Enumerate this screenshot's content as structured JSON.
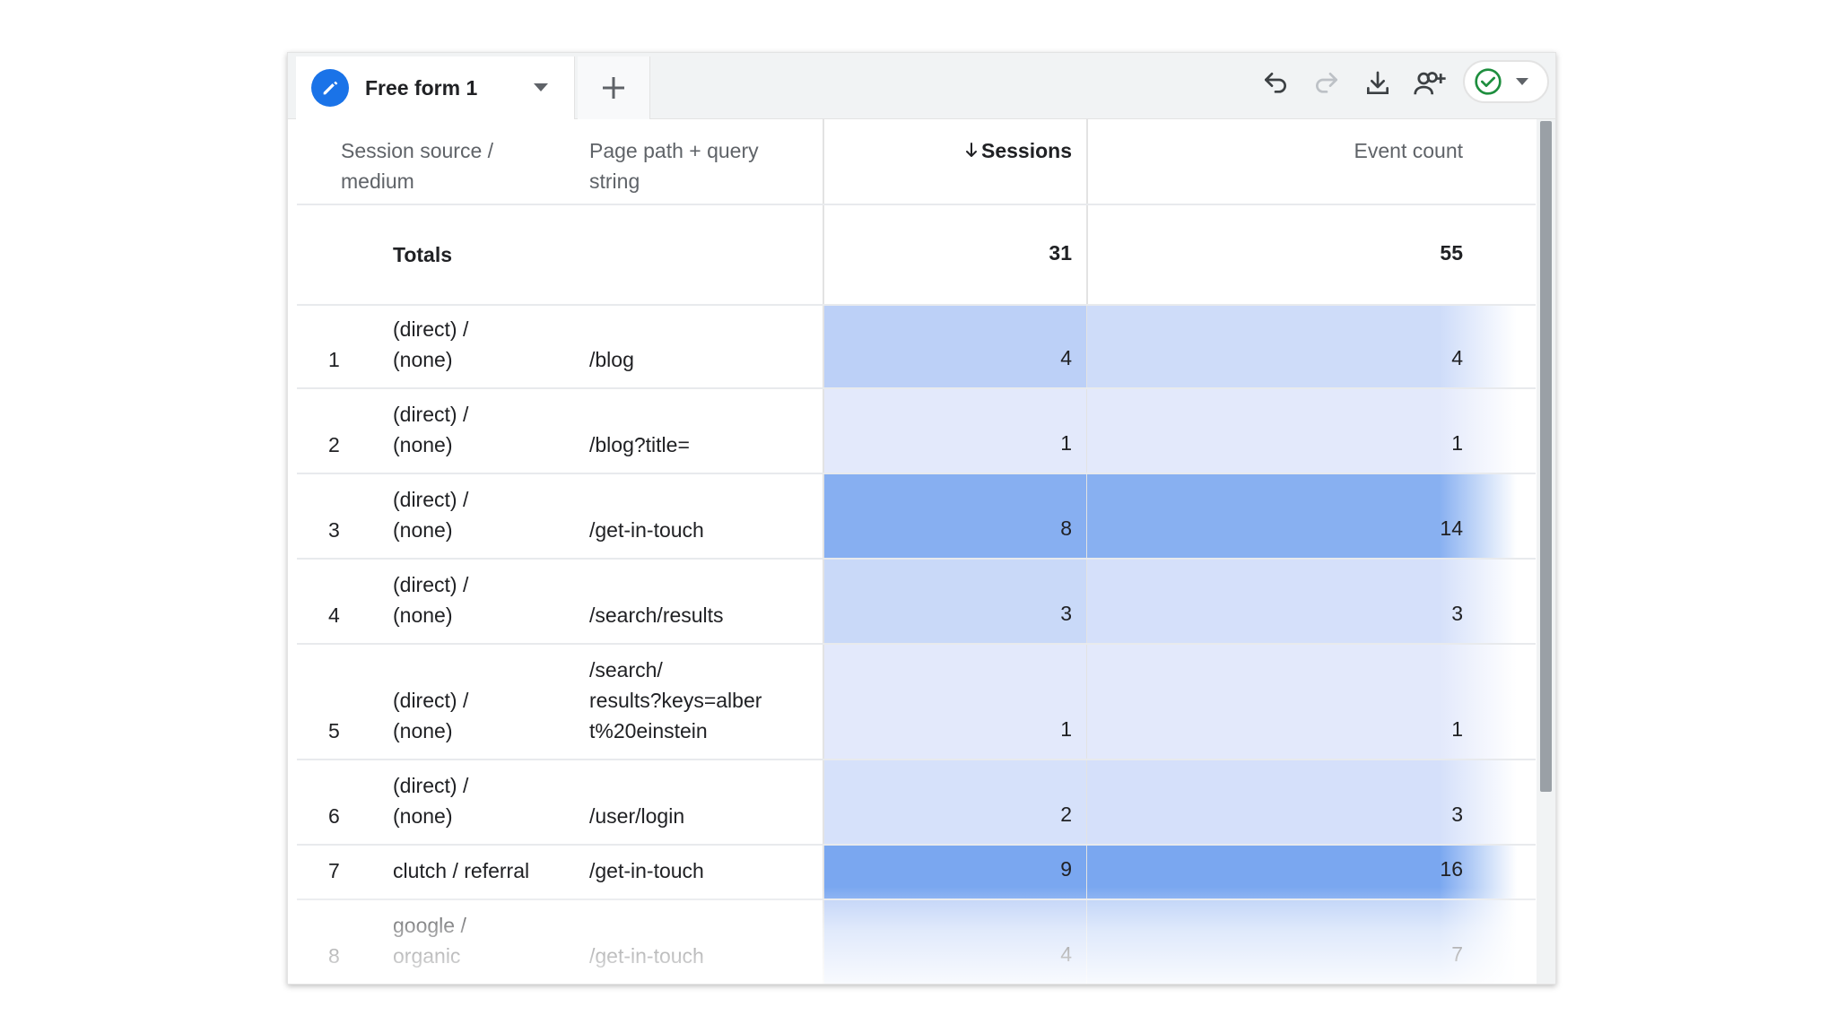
{
  "tab": {
    "title": "Free form 1"
  },
  "columns": {
    "source": "Session source / medium",
    "page": "Page path + query string",
    "sessions": "Sessions",
    "events": "Event count"
  },
  "totals": {
    "label": "Totals",
    "sessions": "31",
    "events": "55"
  },
  "rows": [
    {
      "index": "1",
      "source_line1": "(direct) /",
      "source_line2": "(none)",
      "page_lines": [
        "/blog"
      ],
      "sessions": "4",
      "events": "4"
    },
    {
      "index": "2",
      "source_line1": "(direct) /",
      "source_line2": "(none)",
      "page_lines": [
        "/blog?title="
      ],
      "sessions": "1",
      "events": "1"
    },
    {
      "index": "3",
      "source_line1": "(direct) /",
      "source_line2": "(none)",
      "page_lines": [
        "/get-in-touch"
      ],
      "sessions": "8",
      "events": "14"
    },
    {
      "index": "4",
      "source_line1": "(direct) /",
      "source_line2": "(none)",
      "page_lines": [
        "/search/results"
      ],
      "sessions": "3",
      "events": "3"
    },
    {
      "index": "5",
      "source_line1": "(direct) /",
      "source_line2": "(none)",
      "page_lines": [
        "/search/",
        "results?keys=alber",
        "t%20einstein"
      ],
      "sessions": "1",
      "events": "1"
    },
    {
      "index": "6",
      "source_line1": "(direct) /",
      "source_line2": "(none)",
      "page_lines": [
        "/user/login"
      ],
      "sessions": "2",
      "events": "3"
    },
    {
      "index": "7",
      "source_line1": "clutch / referral",
      "source_line2": "",
      "page_lines": [
        "/get-in-touch"
      ],
      "sessions": "9",
      "events": "16"
    },
    {
      "index": "8",
      "source_line1": "google /",
      "source_line2": "organic",
      "page_lines": [
        "/get-in-touch"
      ],
      "sessions": "4",
      "events": "7"
    }
  ],
  "colors": {
    "accent": "#1a73e8",
    "heat_light": "#e3e9fb",
    "heat_dark": "#7aa7f0",
    "check_green": "#1e8e3e"
  },
  "icons": {
    "tab": "edit-pencil-icon",
    "tab_menu": "caret-down-icon",
    "add": "plus-icon",
    "undo": "undo-icon",
    "redo": "redo-icon",
    "download": "download-icon",
    "share": "add-person-icon",
    "status": "check-circle-icon",
    "sort": "arrow-down-icon"
  }
}
